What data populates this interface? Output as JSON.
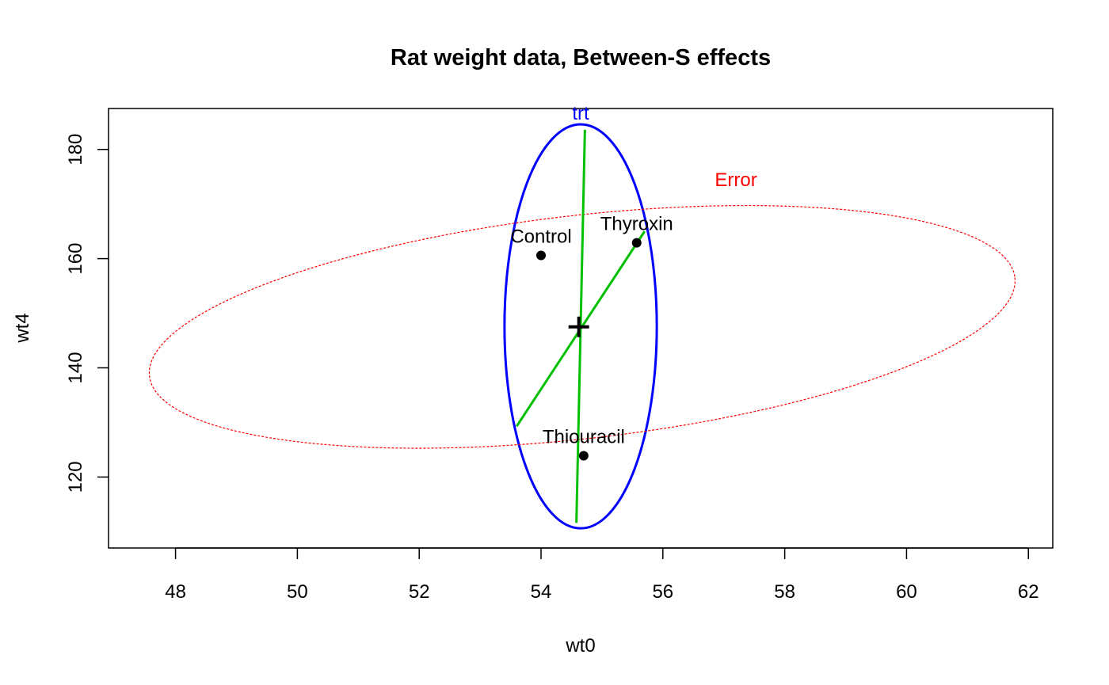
{
  "chart_data": {
    "type": "scatter",
    "title": "Rat weight data, Between-S effects",
    "xlabel": "wt0",
    "ylabel": "wt4",
    "xlim": [
      46.9,
      62.4
    ],
    "ylim": [
      107,
      187.5
    ],
    "xticks": [
      48,
      50,
      52,
      54,
      56,
      58,
      60,
      62
    ],
    "yticks": [
      120,
      140,
      160,
      180
    ],
    "grid": false,
    "points": [
      {
        "label": "Control",
        "x": 54.0,
        "y": 160.6
      },
      {
        "label": "Thyroxin",
        "x": 55.57,
        "y": 162.9
      },
      {
        "label": "Thiouracil",
        "x": 54.7,
        "y": 123.9
      }
    ],
    "center": {
      "x": 54.62,
      "y": 147.5
    },
    "ellipses": [
      {
        "name": "trt",
        "color": "#0000ff",
        "style": "solid",
        "x_range": [
          53.4,
          55.9
        ],
        "y_range": [
          110.6,
          184.6
        ],
        "center": {
          "x": 54.62,
          "y": 147.5
        }
      },
      {
        "name": "Error",
        "color": "#ff0000",
        "style": "dashed",
        "x_range": [
          47.5,
          61.85
        ],
        "y_range": [
          123.0,
          172.0
        ],
        "center": {
          "x": 54.62,
          "y": 147.5
        }
      }
    ],
    "axes_lines": [
      {
        "color": "#00c000",
        "from": {
          "x": 54.72,
          "y": 183.6
        },
        "to": {
          "x": 54.58,
          "y": 111.6
        }
      },
      {
        "color": "#00c000",
        "from": {
          "x": 53.6,
          "y": 129.3
        },
        "to": {
          "x": 55.7,
          "y": 165.0
        }
      }
    ]
  }
}
